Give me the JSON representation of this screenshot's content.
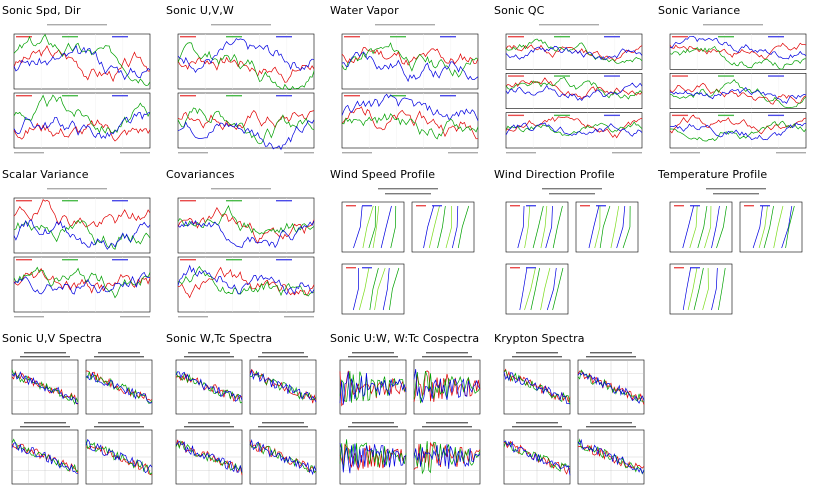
{
  "tiles": [
    {
      "title": "Sonic Spd, Dir",
      "kind": "ts2",
      "name": "thumb-sonic-spd-dir",
      "seed": 3
    },
    {
      "title": "Sonic U,V,W",
      "kind": "ts2",
      "name": "thumb-sonic-uvw",
      "seed": 7
    },
    {
      "title": "Water Vapor",
      "kind": "ts2",
      "name": "thumb-water-vapor",
      "seed": 11
    },
    {
      "title": "Sonic QC",
      "kind": "ts3",
      "name": "thumb-sonic-qc",
      "seed": 13
    },
    {
      "title": "Sonic Variance",
      "kind": "ts3",
      "name": "thumb-sonic-variance",
      "seed": 17
    },
    {
      "title": "Scalar Variance",
      "kind": "ts2",
      "name": "thumb-scalar-variance",
      "seed": 19
    },
    {
      "title": "Covariances",
      "kind": "ts2",
      "name": "thumb-covariances",
      "seed": 23
    },
    {
      "title": "Wind Speed Profile",
      "kind": "profile",
      "name": "thumb-wind-speed-profile",
      "seed": 29
    },
    {
      "title": "Wind Direction Profile",
      "kind": "profile",
      "name": "thumb-wind-direction-profile",
      "seed": 31
    },
    {
      "title": "Temperature Profile",
      "kind": "profile",
      "name": "thumb-temperature-profile",
      "seed": 37
    },
    {
      "title": "Sonic U,V Spectra",
      "kind": "spectra",
      "name": "thumb-sonic-uv-spectra",
      "seed": 41
    },
    {
      "title": "Sonic W,Tc Spectra",
      "kind": "spectra",
      "name": "thumb-sonic-wtc-spectra",
      "seed": 43
    },
    {
      "title": "Sonic U:W, W:Tc Cospectra",
      "kind": "cospectra",
      "name": "thumb-sonic-cospectra",
      "seed": 47
    },
    {
      "title": "Krypton Spectra",
      "kind": "spectra",
      "name": "thumb-krypton-spectra",
      "seed": 53
    }
  ],
  "colors": {
    "red": "#e00000",
    "green": "#00a000",
    "blue": "#0000e0",
    "lime": "#7ddc1f",
    "grid": "#bbbbbb",
    "axis": "#000000"
  }
}
